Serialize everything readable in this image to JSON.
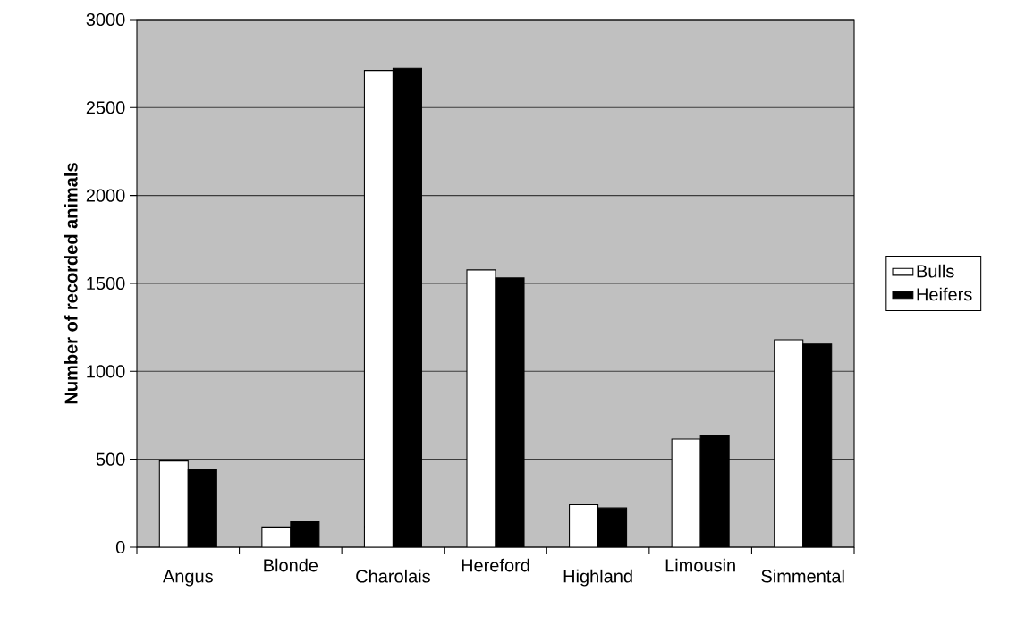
{
  "chart_data": {
    "type": "bar",
    "ylabel": "Number of recorded animals",
    "categories": [
      "Angus",
      "Blonde",
      "Charolais",
      "Hereford",
      "Highland",
      "Limousin",
      "Simmental"
    ],
    "series": [
      {
        "name": "Bulls",
        "color": "#ffffff",
        "values": [
          490,
          115,
          2712,
          1577,
          241,
          615,
          1180
        ]
      },
      {
        "name": "Heifers",
        "color": "#000000",
        "values": [
          444,
          145,
          2724,
          1531,
          223,
          637,
          1155
        ]
      }
    ],
    "ylim": [
      0,
      3000
    ],
    "yticks": [
      0,
      500,
      1000,
      1500,
      2000,
      2500,
      3000
    ],
    "grid": "y",
    "legend": "right"
  }
}
